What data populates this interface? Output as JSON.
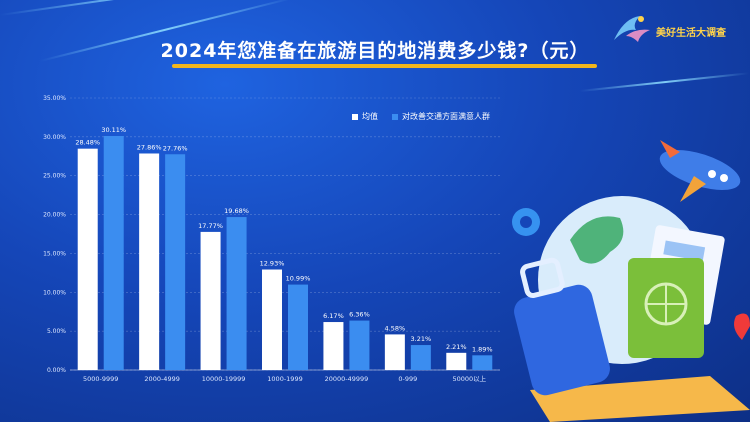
{
  "title": "2024年您准备在旅游目的地消费多少钱?（元）",
  "brand": {
    "name": "美好生活大调查",
    "icon": "bird-logo-icon"
  },
  "colors": {
    "average": "#ffffff",
    "group": "#3b8df0",
    "title_underline": "#f2b61c",
    "brand": "#ffd34a"
  },
  "chart_data": {
    "type": "bar",
    "title": "2024年您准备在旅游目的地消费多少钱?（元）",
    "xlabel": "",
    "ylabel": "",
    "categories": [
      "5000-9999",
      "2000-4999",
      "10000-19999",
      "1000-1999",
      "20000-49999",
      "0-999",
      "50000以上"
    ],
    "series": [
      {
        "name": "均值",
        "values": [
          28.48,
          27.86,
          17.77,
          12.93,
          6.17,
          4.58,
          2.21
        ]
      },
      {
        "name": "对改善交通方面满意人群",
        "values": [
          30.11,
          27.76,
          19.68,
          10.99,
          6.36,
          3.21,
          1.89
        ]
      }
    ],
    "value_labels": [
      [
        "28.48%",
        "27.86%",
        "17.77%",
        "12.93%",
        "6.17%",
        "4.58%",
        "2.21%"
      ],
      [
        "30.11%",
        "27.76%",
        "19.68%",
        "10.99%",
        "6.36%",
        "3.21%",
        "1.89%"
      ]
    ],
    "ylim": [
      0,
      35
    ],
    "yticks": [
      "0.00%",
      "5.00%",
      "10.00%",
      "15.00%",
      "20.00%",
      "25.00%",
      "30.00%",
      "35.00%"
    ],
    "grid": true,
    "legend_position": "top-right"
  }
}
